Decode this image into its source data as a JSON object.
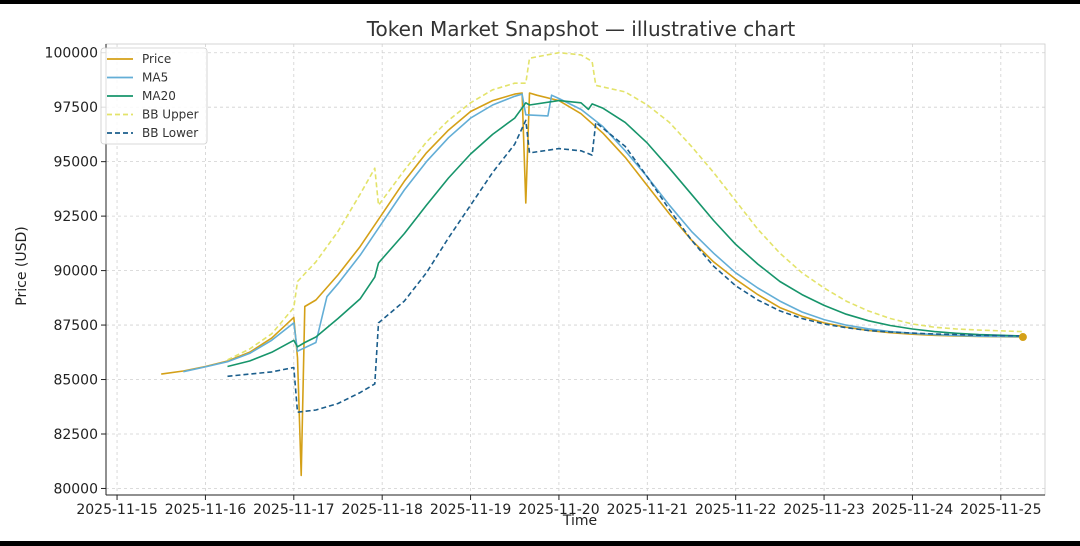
{
  "chart_data": {
    "type": "line",
    "title": "Token Market Snapshot — illustrative chart",
    "xlabel": "Time",
    "ylabel": "Price (USD)",
    "x_ticks": [
      "2025-11-15",
      "2025-11-16",
      "2025-11-17",
      "2025-11-18",
      "2025-11-19",
      "2025-11-20",
      "2025-11-21",
      "2025-11-22",
      "2025-11-23",
      "2025-11-24",
      "2025-11-25"
    ],
    "y_ticks": [
      80000,
      82500,
      85000,
      87500,
      90000,
      92500,
      95000,
      97500,
      100000
    ],
    "xlim": [
      "2025-11-14T21:00",
      "2025-11-25T12:00"
    ],
    "ylim": [
      79700,
      100400
    ],
    "grid": true,
    "legend_position": "top-left",
    "last_point_marker": {
      "x": "2025-11-25T06:00",
      "y": 86950
    },
    "series": [
      {
        "name": "Price",
        "color": "#d4a017",
        "dash": "solid",
        "points": [
          [
            "2025-11-15T12:00",
            85250
          ],
          [
            "2025-11-15T18:00",
            85390
          ],
          [
            "2025-11-16T00:00",
            85600
          ],
          [
            "2025-11-16T06:00",
            85850
          ],
          [
            "2025-11-16T12:00",
            86250
          ],
          [
            "2025-11-16T18:00",
            86900
          ],
          [
            "2025-11-17T00:00",
            87850
          ],
          [
            "2025-11-17T01:00",
            86000
          ],
          [
            "2025-11-17T02:00",
            80600
          ],
          [
            "2025-11-17T03:00",
            88350
          ],
          [
            "2025-11-17T06:00",
            88650
          ],
          [
            "2025-11-17T12:00",
            89800
          ],
          [
            "2025-11-17T18:00",
            91100
          ],
          [
            "2025-11-18T00:00",
            92600
          ],
          [
            "2025-11-18T06:00",
            94100
          ],
          [
            "2025-11-18T12:00",
            95400
          ],
          [
            "2025-11-18T18:00",
            96450
          ],
          [
            "2025-11-19T00:00",
            97300
          ],
          [
            "2025-11-19T06:00",
            97800
          ],
          [
            "2025-11-19T12:00",
            98100
          ],
          [
            "2025-11-19T14:00",
            98150
          ],
          [
            "2025-11-19T15:00",
            93100
          ],
          [
            "2025-11-19T16:00",
            98150
          ],
          [
            "2025-11-19T18:00",
            98050
          ],
          [
            "2025-11-20T00:00",
            97800
          ],
          [
            "2025-11-20T06:00",
            97200
          ],
          [
            "2025-11-20T12:00",
            96300
          ],
          [
            "2025-11-20T18:00",
            95200
          ],
          [
            "2025-11-21T00:00",
            93900
          ],
          [
            "2025-11-21T06:00",
            92600
          ],
          [
            "2025-11-21T12:00",
            91400
          ],
          [
            "2025-11-21T18:00",
            90400
          ],
          [
            "2025-11-22T00:00",
            89600
          ],
          [
            "2025-11-22T06:00",
            88900
          ],
          [
            "2025-11-22T12:00",
            88300
          ],
          [
            "2025-11-22T18:00",
            87900
          ],
          [
            "2025-11-23T00:00",
            87600
          ],
          [
            "2025-11-23T06:00",
            87400
          ],
          [
            "2025-11-23T12:00",
            87250
          ],
          [
            "2025-11-23T18:00",
            87150
          ],
          [
            "2025-11-24T00:00",
            87080
          ],
          [
            "2025-11-24T06:00",
            87030
          ],
          [
            "2025-11-24T12:00",
            87000
          ],
          [
            "2025-11-24T18:00",
            86980
          ],
          [
            "2025-11-25T06:00",
            86950
          ]
        ]
      },
      {
        "name": "MA5",
        "color": "#63aed6",
        "dash": "solid",
        "points": [
          [
            "2025-11-15T18:00",
            85360
          ],
          [
            "2025-11-16T00:00",
            85580
          ],
          [
            "2025-11-16T06:00",
            85820
          ],
          [
            "2025-11-16T12:00",
            86200
          ],
          [
            "2025-11-16T18:00",
            86800
          ],
          [
            "2025-11-17T00:00",
            87600
          ],
          [
            "2025-11-17T01:00",
            86300
          ],
          [
            "2025-11-17T06:00",
            86700
          ],
          [
            "2025-11-17T09:00",
            88800
          ],
          [
            "2025-11-17T12:00",
            89400
          ],
          [
            "2025-11-17T18:00",
            90700
          ],
          [
            "2025-11-18T00:00",
            92200
          ],
          [
            "2025-11-18T06:00",
            93700
          ],
          [
            "2025-11-18T12:00",
            95000
          ],
          [
            "2025-11-18T18:00",
            96100
          ],
          [
            "2025-11-19T00:00",
            97000
          ],
          [
            "2025-11-19T06:00",
            97600
          ],
          [
            "2025-11-19T12:00",
            98000
          ],
          [
            "2025-11-19T14:00",
            98100
          ],
          [
            "2025-11-19T15:00",
            97150
          ],
          [
            "2025-11-19T21:00",
            97100
          ],
          [
            "2025-11-19T22:00",
            98050
          ],
          [
            "2025-11-20T00:00",
            97900
          ],
          [
            "2025-11-20T06:00",
            97400
          ],
          [
            "2025-11-20T12:00",
            96600
          ],
          [
            "2025-11-20T18:00",
            95500
          ],
          [
            "2025-11-21T00:00",
            94300
          ],
          [
            "2025-11-21T06:00",
            93000
          ],
          [
            "2025-11-21T12:00",
            91800
          ],
          [
            "2025-11-21T18:00",
            90800
          ],
          [
            "2025-11-22T00:00",
            89900
          ],
          [
            "2025-11-22T06:00",
            89200
          ],
          [
            "2025-11-22T12:00",
            88600
          ],
          [
            "2025-11-22T18:00",
            88100
          ],
          [
            "2025-11-23T00:00",
            87750
          ],
          [
            "2025-11-23T06:00",
            87500
          ],
          [
            "2025-11-23T12:00",
            87330
          ],
          [
            "2025-11-23T18:00",
            87200
          ],
          [
            "2025-11-24T00:00",
            87120
          ],
          [
            "2025-11-24T06:00",
            87060
          ],
          [
            "2025-11-24T12:00",
            87020
          ],
          [
            "2025-11-24T18:00",
            86990
          ],
          [
            "2025-11-25T06:00",
            86960
          ]
        ]
      },
      {
        "name": "MA20",
        "color": "#17956b",
        "dash": "solid",
        "points": [
          [
            "2025-11-16T06:00",
            85600
          ],
          [
            "2025-11-16T12:00",
            85850
          ],
          [
            "2025-11-16T18:00",
            86250
          ],
          [
            "2025-11-17T00:00",
            86800
          ],
          [
            "2025-11-17T01:00",
            86500
          ],
          [
            "2025-11-17T03:00",
            86700
          ],
          [
            "2025-11-17T06:00",
            86950
          ],
          [
            "2025-11-17T12:00",
            87800
          ],
          [
            "2025-11-17T18:00",
            88700
          ],
          [
            "2025-11-17T22:00",
            89700
          ],
          [
            "2025-11-17T23:00",
            90350
          ],
          [
            "2025-11-18T06:00",
            91700
          ],
          [
            "2025-11-18T12:00",
            93000
          ],
          [
            "2025-11-18T18:00",
            94250
          ],
          [
            "2025-11-19T00:00",
            95350
          ],
          [
            "2025-11-19T06:00",
            96250
          ],
          [
            "2025-11-19T12:00",
            97000
          ],
          [
            "2025-11-19T15:00",
            97700
          ],
          [
            "2025-11-19T16:00",
            97600
          ],
          [
            "2025-11-20T00:00",
            97800
          ],
          [
            "2025-11-20T06:00",
            97700
          ],
          [
            "2025-11-20T08:00",
            97400
          ],
          [
            "2025-11-20T09:00",
            97650
          ],
          [
            "2025-11-20T12:00",
            97450
          ],
          [
            "2025-11-20T18:00",
            96800
          ],
          [
            "2025-11-21T00:00",
            95850
          ],
          [
            "2025-11-21T06:00",
            94700
          ],
          [
            "2025-11-21T12:00",
            93500
          ],
          [
            "2025-11-21T18:00",
            92300
          ],
          [
            "2025-11-22T00:00",
            91200
          ],
          [
            "2025-11-22T06:00",
            90300
          ],
          [
            "2025-11-22T12:00",
            89500
          ],
          [
            "2025-11-22T18:00",
            88900
          ],
          [
            "2025-11-23T00:00",
            88400
          ],
          [
            "2025-11-23T06:00",
            88000
          ],
          [
            "2025-11-23T12:00",
            87700
          ],
          [
            "2025-11-23T18:00",
            87480
          ],
          [
            "2025-11-24T00:00",
            87320
          ],
          [
            "2025-11-24T06:00",
            87200
          ],
          [
            "2025-11-24T12:00",
            87120
          ],
          [
            "2025-11-24T18:00",
            87060
          ],
          [
            "2025-11-25T06:00",
            87000
          ]
        ]
      },
      {
        "name": "BB Upper",
        "color": "#e3e36a",
        "dash": "dashed",
        "points": [
          [
            "2025-11-16T06:00",
            85900
          ],
          [
            "2025-11-16T12:00",
            86400
          ],
          [
            "2025-11-16T18:00",
            87100
          ],
          [
            "2025-11-17T00:00",
            88300
          ],
          [
            "2025-11-17T01:00",
            89500
          ],
          [
            "2025-11-17T06:00",
            90400
          ],
          [
            "2025-11-17T12:00",
            91800
          ],
          [
            "2025-11-17T18:00",
            93500
          ],
          [
            "2025-11-17T22:00",
            94700
          ],
          [
            "2025-11-17T23:00",
            93000
          ],
          [
            "2025-11-18T06:00",
            94600
          ],
          [
            "2025-11-18T12:00",
            95900
          ],
          [
            "2025-11-18T18:00",
            96900
          ],
          [
            "2025-11-19T00:00",
            97700
          ],
          [
            "2025-11-19T06:00",
            98300
          ],
          [
            "2025-11-19T12:00",
            98600
          ],
          [
            "2025-11-19T15:00",
            98600
          ],
          [
            "2025-11-19T16:00",
            99750
          ],
          [
            "2025-11-20T00:00",
            100000
          ],
          [
            "2025-11-20T06:00",
            99900
          ],
          [
            "2025-11-20T09:00",
            99600
          ],
          [
            "2025-11-20T10:00",
            98500
          ],
          [
            "2025-11-20T18:00",
            98200
          ],
          [
            "2025-11-21T00:00",
            97600
          ],
          [
            "2025-11-21T06:00",
            96800
          ],
          [
            "2025-11-21T12:00",
            95700
          ],
          [
            "2025-11-21T18:00",
            94500
          ],
          [
            "2025-11-22T00:00",
            93200
          ],
          [
            "2025-11-22T06:00",
            91900
          ],
          [
            "2025-11-22T12:00",
            90800
          ],
          [
            "2025-11-22T18:00",
            89900
          ],
          [
            "2025-11-23T00:00",
            89200
          ],
          [
            "2025-11-23T06:00",
            88600
          ],
          [
            "2025-11-23T12:00",
            88150
          ],
          [
            "2025-11-23T18:00",
            87800
          ],
          [
            "2025-11-24T00:00",
            87550
          ],
          [
            "2025-11-24T06:00",
            87400
          ],
          [
            "2025-11-24T12:00",
            87320
          ],
          [
            "2025-11-24T18:00",
            87270
          ],
          [
            "2025-11-25T06:00",
            87200
          ]
        ]
      },
      {
        "name": "BB Lower",
        "color": "#1b5e8c",
        "dash": "dashed",
        "points": [
          [
            "2025-11-16T06:00",
            85150
          ],
          [
            "2025-11-16T12:00",
            85250
          ],
          [
            "2025-11-16T18:00",
            85350
          ],
          [
            "2025-11-17T00:00",
            85550
          ],
          [
            "2025-11-17T01:00",
            83500
          ],
          [
            "2025-11-17T06:00",
            83600
          ],
          [
            "2025-11-17T12:00",
            83900
          ],
          [
            "2025-11-17T18:00",
            84400
          ],
          [
            "2025-11-17T22:00",
            84800
          ],
          [
            "2025-11-17T23:00",
            87600
          ],
          [
            "2025-11-18T06:00",
            88600
          ],
          [
            "2025-11-18T12:00",
            89900
          ],
          [
            "2025-11-18T18:00",
            91500
          ],
          [
            "2025-11-19T00:00",
            93000
          ],
          [
            "2025-11-19T06:00",
            94500
          ],
          [
            "2025-11-19T12:00",
            95800
          ],
          [
            "2025-11-19T15:00",
            96900
          ],
          [
            "2025-11-19T16:00",
            95400
          ],
          [
            "2025-11-20T00:00",
            95600
          ],
          [
            "2025-11-20T06:00",
            95500
          ],
          [
            "2025-11-20T09:00",
            95300
          ],
          [
            "2025-11-20T10:00",
            96800
          ],
          [
            "2025-11-20T18:00",
            95700
          ],
          [
            "2025-11-21T00:00",
            94300
          ],
          [
            "2025-11-21T06:00",
            92800
          ],
          [
            "2025-11-21T12:00",
            91400
          ],
          [
            "2025-11-21T18:00",
            90200
          ],
          [
            "2025-11-22T00:00",
            89300
          ],
          [
            "2025-11-22T06:00",
            88650
          ],
          [
            "2025-11-22T12:00",
            88150
          ],
          [
            "2025-11-22T18:00",
            87800
          ],
          [
            "2025-11-23T00:00",
            87550
          ],
          [
            "2025-11-23T06:00",
            87380
          ],
          [
            "2025-11-23T12:00",
            87250
          ],
          [
            "2025-11-23T18:00",
            87180
          ],
          [
            "2025-11-24T00:00",
            87130
          ],
          [
            "2025-11-24T06:00",
            87090
          ],
          [
            "2025-11-24T12:00",
            87060
          ],
          [
            "2025-11-24T18:00",
            87030
          ],
          [
            "2025-11-25T06:00",
            87000
          ]
        ]
      }
    ]
  }
}
